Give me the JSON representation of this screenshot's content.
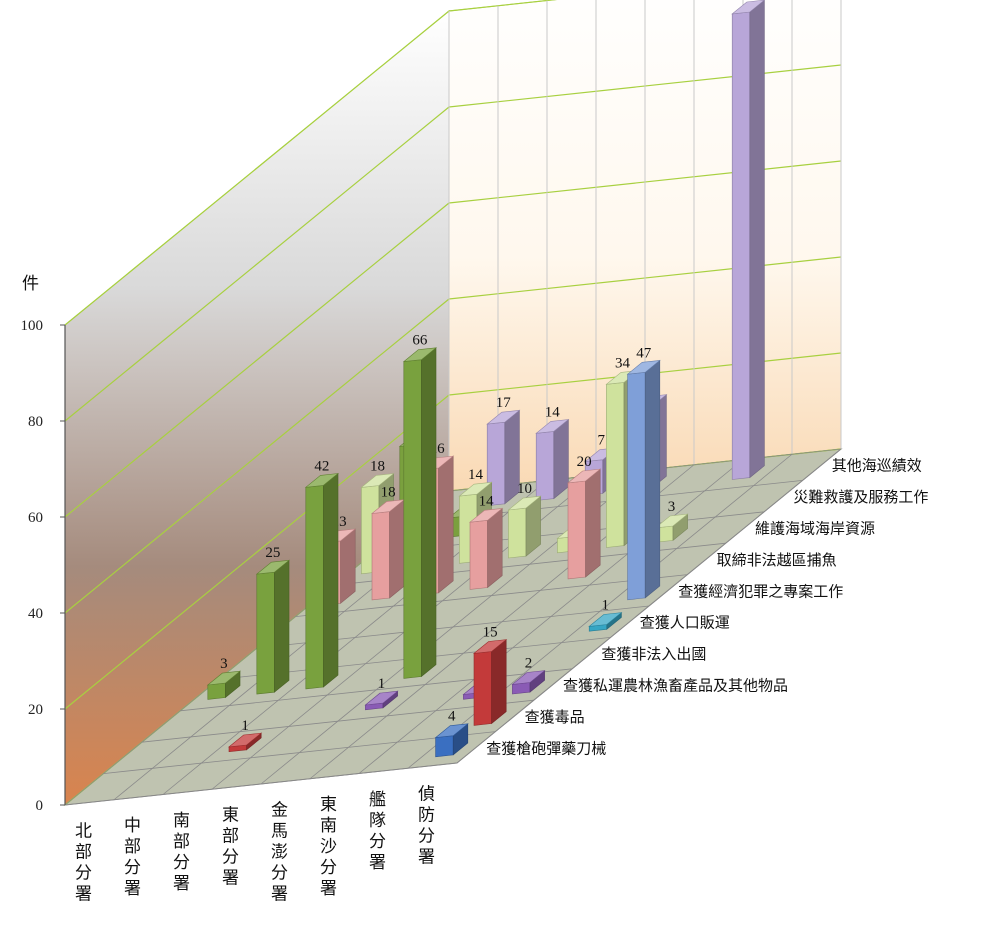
{
  "chart_data": {
    "type": "bar",
    "variant": "3d-column",
    "ylabel": "件",
    "ylim": [
      0,
      100
    ],
    "yticks": [
      0,
      20,
      40,
      60,
      80,
      100
    ],
    "categories": [
      "北部分署",
      "中部分署",
      "南部分署",
      "東部分署",
      "金馬澎分署",
      "東南沙分署",
      "艦隊分署",
      "偵防分署"
    ],
    "series": [
      {
        "name": "查獲槍砲彈藥刀械",
        "color": "#3a6fc1",
        "values": [
          null,
          null,
          null,
          null,
          null,
          null,
          null,
          4
        ]
      },
      {
        "name": "查獲毒品",
        "color": "#c33a3a",
        "values": [
          null,
          null,
          1,
          null,
          null,
          null,
          null,
          15
        ]
      },
      {
        "name": "查獲私運農林漁畜產品及其他物品",
        "color": "#8a5bb5",
        "values": [
          null,
          null,
          null,
          null,
          1,
          null,
          1,
          2
        ]
      },
      {
        "name": "查獲非法入出國",
        "color": "#79a13e",
        "values": [
          3,
          25,
          42,
          null,
          66,
          null,
          null,
          null
        ]
      },
      {
        "name": "查獲人口販運",
        "color": "#36a6c4",
        "values": [
          null,
          null,
          null,
          null,
          null,
          null,
          null,
          1
        ]
      },
      {
        "name": "查獲經濟犯罪之專案工作",
        "color": "#7f9fd8",
        "values": [
          null,
          null,
          null,
          null,
          null,
          null,
          null,
          47
        ]
      },
      {
        "name": "取締非法越區捕魚",
        "color": "#e69f9f",
        "values": [
          13,
          18,
          26,
          14,
          null,
          20,
          null,
          null
        ]
      },
      {
        "name": "維護海域海岸資源",
        "color": "#cfe29d",
        "values": [
          18,
          12,
          14,
          10,
          3,
          34,
          3,
          null
        ]
      },
      {
        "name": "災難救護及服務工作",
        "color": "#7aa03e",
        "values": [
          20,
          4,
          null,
          null,
          null,
          null,
          null,
          null
        ]
      },
      {
        "name": "其他海巡績效",
        "color": "#b8a6d8",
        "values": [
          null,
          17,
          14,
          7,
          17,
          null,
          97,
          null
        ]
      }
    ]
  }
}
